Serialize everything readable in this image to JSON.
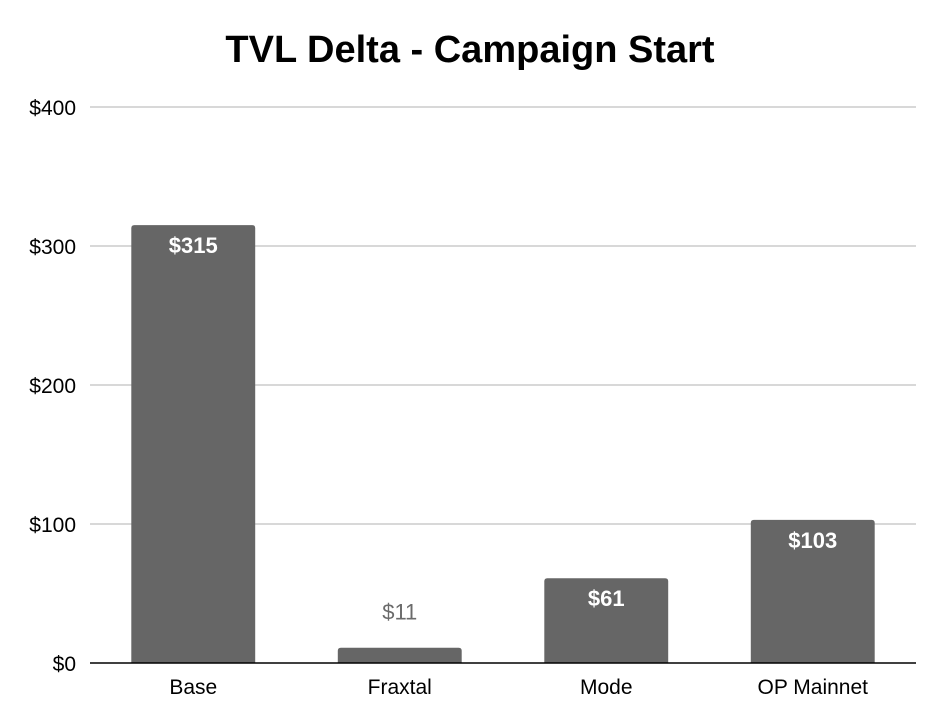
{
  "chart_data": {
    "type": "bar",
    "title": "TVL Delta - Campaign Start",
    "xlabel": "",
    "ylabel": "",
    "categories": [
      "Base",
      "Fraxtal",
      "Mode",
      "OP Mainnet"
    ],
    "values": [
      315,
      11,
      61,
      103
    ],
    "data_labels": [
      "$315",
      "$11",
      "$61",
      "$103"
    ],
    "ylim": [
      0,
      400
    ],
    "yticks": [
      0,
      100,
      200,
      300,
      400
    ],
    "ytick_labels": [
      "$0",
      "$100",
      "$200",
      "$300",
      "$400"
    ],
    "grid": true,
    "legend": "none",
    "bar_color": "#666666"
  }
}
